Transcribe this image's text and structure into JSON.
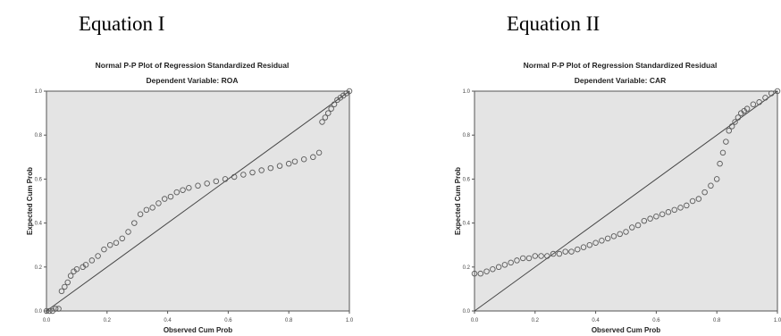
{
  "panel_titles": [
    "Equation I",
    "Equation II"
  ],
  "chart_data": [
    {
      "type": "scatter",
      "title": "Normal P-P Plot of Regression Standardized Residual",
      "subtitle": "Dependent Variable: ROA",
      "xlabel": "Observed Cum Prob",
      "ylabel": "Expected Cum Prob",
      "xlim": [
        0,
        1
      ],
      "ylim": [
        0,
        1
      ],
      "x_ticks": [
        "0.0",
        "0.2",
        "0.4",
        "0.6",
        "0.8",
        "1.0"
      ],
      "y_ticks": [
        "0.0",
        "0.2",
        "0.4",
        "0.6",
        "0.8",
        "1.0"
      ],
      "reference_line": [
        [
          0,
          0
        ],
        [
          1,
          1
        ]
      ],
      "plot_background": "#e4e4e4",
      "marker": "open-circle",
      "points": [
        [
          0.0,
          0.0
        ],
        [
          0.01,
          0.0
        ],
        [
          0.02,
          0.0
        ],
        [
          0.03,
          0.01
        ],
        [
          0.04,
          0.01
        ],
        [
          0.05,
          0.09
        ],
        [
          0.06,
          0.11
        ],
        [
          0.07,
          0.13
        ],
        [
          0.08,
          0.16
        ],
        [
          0.09,
          0.18
        ],
        [
          0.1,
          0.19
        ],
        [
          0.12,
          0.2
        ],
        [
          0.13,
          0.21
        ],
        [
          0.15,
          0.23
        ],
        [
          0.17,
          0.25
        ],
        [
          0.19,
          0.28
        ],
        [
          0.21,
          0.3
        ],
        [
          0.23,
          0.31
        ],
        [
          0.25,
          0.33
        ],
        [
          0.27,
          0.36
        ],
        [
          0.29,
          0.4
        ],
        [
          0.31,
          0.44
        ],
        [
          0.33,
          0.46
        ],
        [
          0.35,
          0.47
        ],
        [
          0.37,
          0.49
        ],
        [
          0.39,
          0.51
        ],
        [
          0.41,
          0.52
        ],
        [
          0.43,
          0.54
        ],
        [
          0.45,
          0.55
        ],
        [
          0.47,
          0.56
        ],
        [
          0.5,
          0.57
        ],
        [
          0.53,
          0.58
        ],
        [
          0.56,
          0.59
        ],
        [
          0.59,
          0.6
        ],
        [
          0.62,
          0.61
        ],
        [
          0.65,
          0.62
        ],
        [
          0.68,
          0.63
        ],
        [
          0.71,
          0.64
        ],
        [
          0.74,
          0.65
        ],
        [
          0.77,
          0.66
        ],
        [
          0.8,
          0.67
        ],
        [
          0.82,
          0.68
        ],
        [
          0.85,
          0.69
        ],
        [
          0.88,
          0.7
        ],
        [
          0.9,
          0.72
        ],
        [
          0.91,
          0.86
        ],
        [
          0.92,
          0.88
        ],
        [
          0.93,
          0.9
        ],
        [
          0.94,
          0.92
        ],
        [
          0.95,
          0.94
        ],
        [
          0.96,
          0.96
        ],
        [
          0.97,
          0.97
        ],
        [
          0.98,
          0.98
        ],
        [
          0.99,
          0.99
        ],
        [
          1.0,
          1.0
        ]
      ]
    },
    {
      "type": "scatter",
      "title": "Normal P-P Plot of Regression Standardized Residual",
      "subtitle": "Dependent Variable: CAR",
      "xlabel": "Observed Cum Prob",
      "ylabel": "Expected Cum Prob",
      "xlim": [
        0,
        1
      ],
      "ylim": [
        0,
        1
      ],
      "x_ticks": [
        "0.0",
        "0.2",
        "0.4",
        "0.6",
        "0.8",
        "1.0"
      ],
      "y_ticks": [
        "0.0",
        "0.2",
        "0.4",
        "0.6",
        "0.8",
        "1.0"
      ],
      "reference_line": [
        [
          0,
          0
        ],
        [
          1,
          1
        ]
      ],
      "plot_background": "#e4e4e4",
      "marker": "open-circle",
      "points": [
        [
          0.0,
          0.17
        ],
        [
          0.02,
          0.17
        ],
        [
          0.04,
          0.18
        ],
        [
          0.06,
          0.19
        ],
        [
          0.08,
          0.2
        ],
        [
          0.1,
          0.21
        ],
        [
          0.12,
          0.22
        ],
        [
          0.14,
          0.23
        ],
        [
          0.16,
          0.24
        ],
        [
          0.18,
          0.24
        ],
        [
          0.2,
          0.25
        ],
        [
          0.22,
          0.25
        ],
        [
          0.24,
          0.25
        ],
        [
          0.26,
          0.26
        ],
        [
          0.28,
          0.26
        ],
        [
          0.3,
          0.27
        ],
        [
          0.32,
          0.27
        ],
        [
          0.34,
          0.28
        ],
        [
          0.36,
          0.29
        ],
        [
          0.38,
          0.3
        ],
        [
          0.4,
          0.31
        ],
        [
          0.42,
          0.32
        ],
        [
          0.44,
          0.33
        ],
        [
          0.46,
          0.34
        ],
        [
          0.48,
          0.35
        ],
        [
          0.5,
          0.36
        ],
        [
          0.52,
          0.38
        ],
        [
          0.54,
          0.39
        ],
        [
          0.56,
          0.41
        ],
        [
          0.58,
          0.42
        ],
        [
          0.6,
          0.43
        ],
        [
          0.62,
          0.44
        ],
        [
          0.64,
          0.45
        ],
        [
          0.66,
          0.46
        ],
        [
          0.68,
          0.47
        ],
        [
          0.7,
          0.48
        ],
        [
          0.72,
          0.5
        ],
        [
          0.74,
          0.51
        ],
        [
          0.76,
          0.54
        ],
        [
          0.78,
          0.57
        ],
        [
          0.8,
          0.6
        ],
        [
          0.81,
          0.67
        ],
        [
          0.82,
          0.72
        ],
        [
          0.83,
          0.77
        ],
        [
          0.84,
          0.82
        ],
        [
          0.85,
          0.84
        ],
        [
          0.86,
          0.86
        ],
        [
          0.87,
          0.88
        ],
        [
          0.88,
          0.9
        ],
        [
          0.89,
          0.91
        ],
        [
          0.9,
          0.92
        ],
        [
          0.92,
          0.94
        ],
        [
          0.94,
          0.95
        ],
        [
          0.96,
          0.97
        ],
        [
          0.98,
          0.99
        ],
        [
          1.0,
          1.0
        ]
      ]
    }
  ]
}
